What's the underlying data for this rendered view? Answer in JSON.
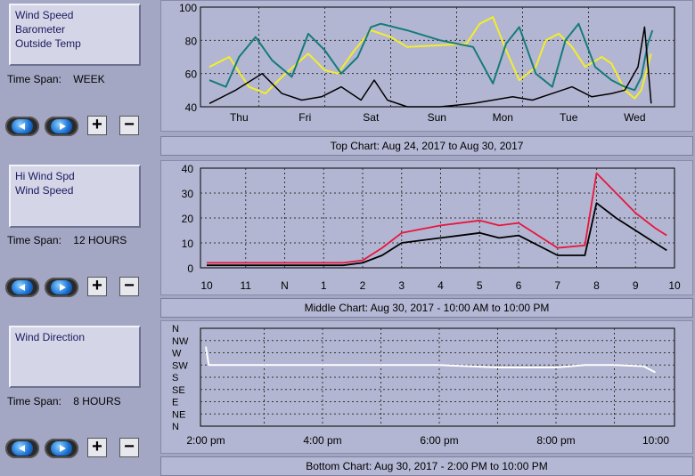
{
  "panels": [
    {
      "legend": [
        "Wind Speed",
        "Barometer",
        "Outside Temp"
      ],
      "timespan_label": "Time Span:",
      "timespan_value": "WEEK",
      "caption": "Top Chart:  Aug 24, 2017  to  Aug 30, 2017"
    },
    {
      "legend": [
        "Hi Wind Spd",
        "Wind Speed"
      ],
      "timespan_label": "Time Span:",
      "timespan_value": "12 HOURS",
      "caption": "Middle Chart:  Aug 30, 2017 - 10:00 AM  to  10:00 PM"
    },
    {
      "legend": [
        "Wind Direction"
      ],
      "timespan_label": "Time Span:",
      "timespan_value": "8 HOURS",
      "caption": "Bottom Chart:  Aug 30, 2017 - 2:00 PM  to  10:00 PM"
    }
  ],
  "buttons": {
    "plus": "+",
    "minus": "−"
  },
  "colors": {
    "temp": "#f2ee2a",
    "baro": "#167b78",
    "wind": "#000000",
    "hiwind": "#e8153c",
    "dir": "#ffffff"
  },
  "chart_data": [
    {
      "type": "line",
      "categories": [
        "Thu",
        "Fri",
        "Sat",
        "Sun",
        "Mon",
        "Tue",
        "Wed"
      ],
      "ylim": [
        40,
        100
      ],
      "yticks": [
        40,
        60,
        80,
        100
      ],
      "grid": true,
      "series": [
        {
          "key": "temp",
          "x": [
            0,
            0.3,
            0.6,
            0.85,
            1.1,
            1.5,
            1.75,
            1.95,
            2.2,
            2.45,
            2.75,
            3.0,
            3.5,
            3.9,
            4.1,
            4.3,
            4.5,
            4.7,
            4.95,
            5.1,
            5.3,
            5.5,
            5.7,
            5.95,
            6.1,
            6.3,
            6.45,
            6.55,
            6.7
          ],
          "y": [
            64,
            70,
            52,
            48,
            58,
            72,
            62,
            60,
            74,
            86,
            82,
            76,
            77,
            78,
            90,
            94,
            74,
            56,
            64,
            80,
            84,
            76,
            64,
            70,
            66,
            50,
            45,
            50,
            72
          ]
        },
        {
          "key": "baro",
          "x": [
            0,
            0.25,
            0.45,
            0.7,
            0.95,
            1.25,
            1.5,
            1.75,
            2.0,
            2.25,
            2.45,
            2.6,
            3.0,
            3.5,
            4.0,
            4.3,
            4.5,
            4.7,
            4.95,
            5.2,
            5.4,
            5.6,
            5.85,
            6.1,
            6.3,
            6.45,
            6.55,
            6.65,
            6.72
          ],
          "y": [
            56,
            52,
            70,
            82,
            68,
            58,
            84,
            74,
            60,
            70,
            88,
            90,
            86,
            80,
            76,
            54,
            78,
            88,
            60,
            52,
            80,
            90,
            64,
            56,
            52,
            50,
            58,
            78,
            86
          ]
        },
        {
          "key": "wind",
          "x": [
            0,
            0.4,
            0.8,
            1.1,
            1.4,
            1.7,
            2.0,
            2.3,
            2.5,
            2.7,
            3.0,
            3.5,
            4.0,
            4.3,
            4.6,
            4.9,
            5.2,
            5.5,
            5.8,
            6.1,
            6.3,
            6.5,
            6.6,
            6.7
          ],
          "y": [
            42,
            50,
            60,
            48,
            44,
            46,
            52,
            44,
            56,
            44,
            40,
            40,
            42,
            44,
            46,
            44,
            48,
            52,
            46,
            48,
            50,
            64,
            88,
            42
          ]
        }
      ]
    },
    {
      "type": "line",
      "categories": [
        "10",
        "11",
        "N",
        "1",
        "2",
        "3",
        "4",
        "5",
        "6",
        "7",
        "8",
        "9",
        "10"
      ],
      "ylim": [
        0,
        40
      ],
      "yticks": [
        0,
        10,
        20,
        30,
        40
      ],
      "grid": true,
      "series": [
        {
          "key": "hiwind",
          "x": [
            0,
            1,
            2,
            3,
            3.5,
            4,
            4.5,
            5,
            6,
            7,
            7.5,
            8,
            9,
            9.7,
            10,
            10.5,
            11,
            11.5,
            11.8
          ],
          "y": [
            2,
            2,
            2,
            2,
            2,
            3,
            8,
            14,
            17,
            19,
            17,
            18,
            8,
            9,
            38,
            30,
            22,
            16,
            13
          ]
        },
        {
          "key": "wind",
          "x": [
            0,
            1,
            2,
            3,
            3.5,
            4,
            4.5,
            5,
            6,
            7,
            7.5,
            8,
            9,
            9.7,
            10,
            10.5,
            11,
            11.5,
            11.8
          ],
          "y": [
            1,
            1,
            1,
            1,
            1,
            2,
            5,
            10,
            12,
            14,
            12,
            13,
            5,
            5,
            26,
            20,
            15,
            10,
            7
          ]
        }
      ]
    },
    {
      "type": "line",
      "categories": [
        "2:00 pm",
        "4:00 pm",
        "6:00 pm",
        "8:00 pm",
        "10:00"
      ],
      "ylevels": [
        "N",
        "NW",
        "W",
        "SW",
        "S",
        "SE",
        "E",
        "NE",
        "N"
      ],
      "grid": true,
      "series": [
        {
          "key": "dir",
          "x": [
            0,
            0.05,
            0.1,
            1,
            2,
            3,
            4,
            5,
            6,
            6.5,
            7,
            7.5,
            7.7
          ],
          "y": [
            1.5,
            3,
            3,
            3,
            3,
            3,
            3,
            3.2,
            3.2,
            3,
            3,
            3.1,
            3.6
          ]
        }
      ]
    }
  ]
}
